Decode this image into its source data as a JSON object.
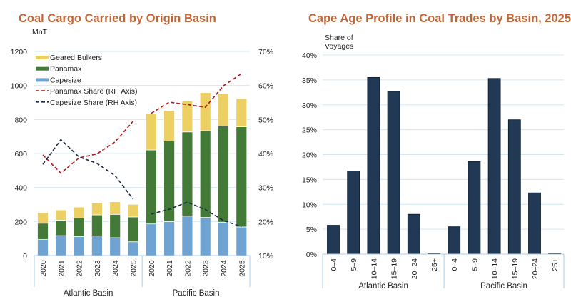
{
  "chart_data": [
    {
      "type": "bar",
      "stacked": true,
      "title": "Coal Cargo Carried by Origin Basin",
      "ylabel": "MnT",
      "ylim": [
        0,
        1200
      ],
      "yticks": [
        "0",
        "200",
        "400",
        "600",
        "800",
        "1000",
        "1200"
      ],
      "y2lim": [
        10,
        70
      ],
      "y2ticks": [
        "10%",
        "20%",
        "30%",
        "40%",
        "50%",
        "60%",
        "70%"
      ],
      "grid": true,
      "legend_position": "top-left",
      "groups": [
        "Atlantic Basin",
        "Pacific Basin"
      ],
      "categories": [
        "2020",
        "2021",
        "2022",
        "2023",
        "2024",
        "2025"
      ],
      "series": [
        {
          "name": "Capesize",
          "color": "#6fa3d2",
          "values": [
            [
              94,
              117,
              112,
              115,
              105,
              81
            ],
            [
              186,
              200,
              232,
              224,
              196,
              168
            ]
          ]
        },
        {
          "name": "Panamax",
          "color": "#437a38",
          "values": [
            [
              96,
              91,
              109,
              124,
              137,
              146
            ],
            [
              435,
              473,
              495,
              510,
              566,
              589
            ]
          ]
        },
        {
          "name": "Geared Bulkers",
          "color": "#ecd064",
          "values": [
            [
              62,
              60,
              64,
              71,
              74,
              74
            ],
            [
              215,
              180,
              181,
              224,
              192,
              166
            ]
          ]
        }
      ],
      "line_series": [
        {
          "name": "Panamax Share (RH Axis)",
          "color": "#b0191e",
          "axis": "right",
          "values": [
            [
              39.6,
              34.2,
              38.7,
              39.9,
              43.4,
              49.5
            ],
            [
              51.8,
              55.1,
              54.4,
              53.6,
              59.9,
              63.5
            ]
          ]
        },
        {
          "name": "Capesize Share (RH Axis)",
          "color": "#1b2b40",
          "axis": "right",
          "values": [
            [
              36.8,
              44.1,
              39.0,
              37.1,
              33.5,
              26.6
            ],
            [
              22.2,
              23.6,
              25.7,
              23.5,
              20.3,
              18.5
            ]
          ]
        }
      ],
      "legend_order": [
        "Geared Bulkers",
        "Panamax",
        "Capesize",
        "Panamax Share (RH Axis)",
        "Capesize Share (RH Axis)"
      ]
    },
    {
      "type": "bar",
      "title": "Cape Age Profile in Coal Trades by Basin, 2025",
      "ylabel": "Share of Voyages",
      "ylim": [
        0,
        40
      ],
      "yticks": [
        "0%",
        "5%",
        "10%",
        "15%",
        "20%",
        "25%",
        "30%",
        "35%",
        "40%"
      ],
      "grid": true,
      "groups": [
        "Atlantic Basin",
        "Pacific Basin"
      ],
      "categories": [
        "0–4",
        "5–9",
        "10–14",
        "15–19",
        "20–24",
        "25+"
      ],
      "color": "#213954",
      "values": [
        [
          5.8,
          16.7,
          35.5,
          32.7,
          8.0,
          0.1
        ],
        [
          5.5,
          18.6,
          35.3,
          27.0,
          12.3,
          0.1
        ]
      ]
    }
  ],
  "colors": {
    "title": "#c0673a",
    "grid": "#d3e8f3",
    "axis_box": "#a9cfe4"
  }
}
